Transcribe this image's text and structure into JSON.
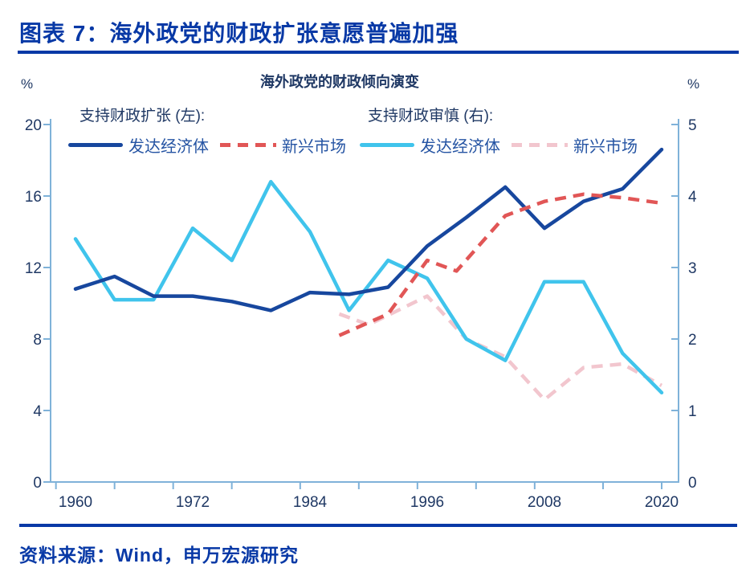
{
  "header": {
    "title": "图表 7：海外政党的财政扩张意愿普遍加强"
  },
  "source": {
    "text": "资料来源：Wind，申万宏源研究"
  },
  "colors": {
    "header_blue": "#0839A6",
    "axis_line": "#7FB2D9",
    "tick_label": "#1F3864",
    "legend_label": "#2554A3"
  },
  "chart_data": {
    "type": "line",
    "title": "海外政党的财政倾向演变",
    "unit_left": "%",
    "unit_right": "%",
    "x_axis": {
      "tick_labels": [
        1960,
        1972,
        1984,
        1996,
        2008,
        2020
      ],
      "minor_tick_years": [
        1958,
        1964,
        1970,
        1976,
        1983,
        1989,
        1995,
        2001,
        2007,
        2014,
        2020
      ],
      "range_years": [
        1957.5,
        2021.7
      ]
    },
    "left_axis": {
      "ticks": [
        0,
        4,
        8,
        12,
        16,
        20
      ],
      "range": [
        0,
        20
      ]
    },
    "right_axis": {
      "ticks": [
        0,
        1,
        2,
        3,
        4,
        5
      ],
      "range": [
        0,
        5
      ]
    },
    "legend_groups": [
      {
        "label": "支持财政扩张 (左):",
        "items": [
          {
            "name": "发达经济体",
            "color": "#17479E",
            "dash": false
          },
          {
            "name": "新兴市场",
            "color": "#E15656",
            "dash": true
          }
        ]
      },
      {
        "label": "支持财政审慎 (右):",
        "items": [
          {
            "name": "发达经济体",
            "color": "#40C4EC",
            "dash": false
          },
          {
            "name": "新兴市场",
            "color": "#F2C6CE",
            "dash": true
          }
        ]
      }
    ],
    "series": [
      {
        "name": "支持财政审慎-新兴市场(右轴)",
        "axis": "right",
        "color": "#F2C6CE",
        "dash": true,
        "points": [
          [
            1987,
            2.35
          ],
          [
            1990,
            2.2
          ],
          [
            1996,
            2.6
          ],
          [
            2000,
            2.0
          ],
          [
            2004,
            1.75
          ],
          [
            2008,
            1.15
          ],
          [
            2012,
            1.6
          ],
          [
            2016,
            1.65
          ],
          [
            2020,
            1.35
          ]
        ]
      },
      {
        "name": "支持财政审慎-发达经济体(右轴)",
        "axis": "right",
        "color": "#40C4EC",
        "dash": false,
        "points": [
          [
            1960,
            3.4
          ],
          [
            1964,
            2.55
          ],
          [
            1968,
            2.55
          ],
          [
            1972,
            3.55
          ],
          [
            1976,
            3.1
          ],
          [
            1980,
            4.2
          ],
          [
            1984,
            3.5
          ],
          [
            1988,
            2.4
          ],
          [
            1992,
            3.1
          ],
          [
            1996,
            2.85
          ],
          [
            2000,
            2.0
          ],
          [
            2004,
            1.7
          ],
          [
            2008,
            2.8
          ],
          [
            2012,
            2.8
          ],
          [
            2016,
            1.8
          ],
          [
            2020,
            1.25
          ]
        ]
      },
      {
        "name": "支持财政扩张-发达经济体(左轴)",
        "axis": "left",
        "color": "#17479E",
        "dash": false,
        "points": [
          [
            1960,
            10.8
          ],
          [
            1964,
            11.5
          ],
          [
            1968,
            10.4
          ],
          [
            1972,
            10.4
          ],
          [
            1976,
            10.1
          ],
          [
            1980,
            9.6
          ],
          [
            1984,
            10.6
          ],
          [
            1988,
            10.5
          ],
          [
            1992,
            10.9
          ],
          [
            1996,
            13.2
          ],
          [
            2000,
            14.8
          ],
          [
            2004,
            16.5
          ],
          [
            2008,
            14.2
          ],
          [
            2012,
            15.7
          ],
          [
            2016,
            16.4
          ],
          [
            2020,
            18.6
          ]
        ]
      },
      {
        "name": "支持财政扩张-新兴市场(左轴)",
        "axis": "left",
        "color": "#E15656",
        "dash": true,
        "points": [
          [
            1987,
            8.2
          ],
          [
            1992,
            9.4
          ],
          [
            1996,
            12.4
          ],
          [
            1999,
            11.8
          ],
          [
            2004,
            14.9
          ],
          [
            2008,
            15.7
          ],
          [
            2012,
            16.1
          ],
          [
            2016,
            15.9
          ],
          [
            2020,
            15.6
          ]
        ]
      }
    ]
  }
}
